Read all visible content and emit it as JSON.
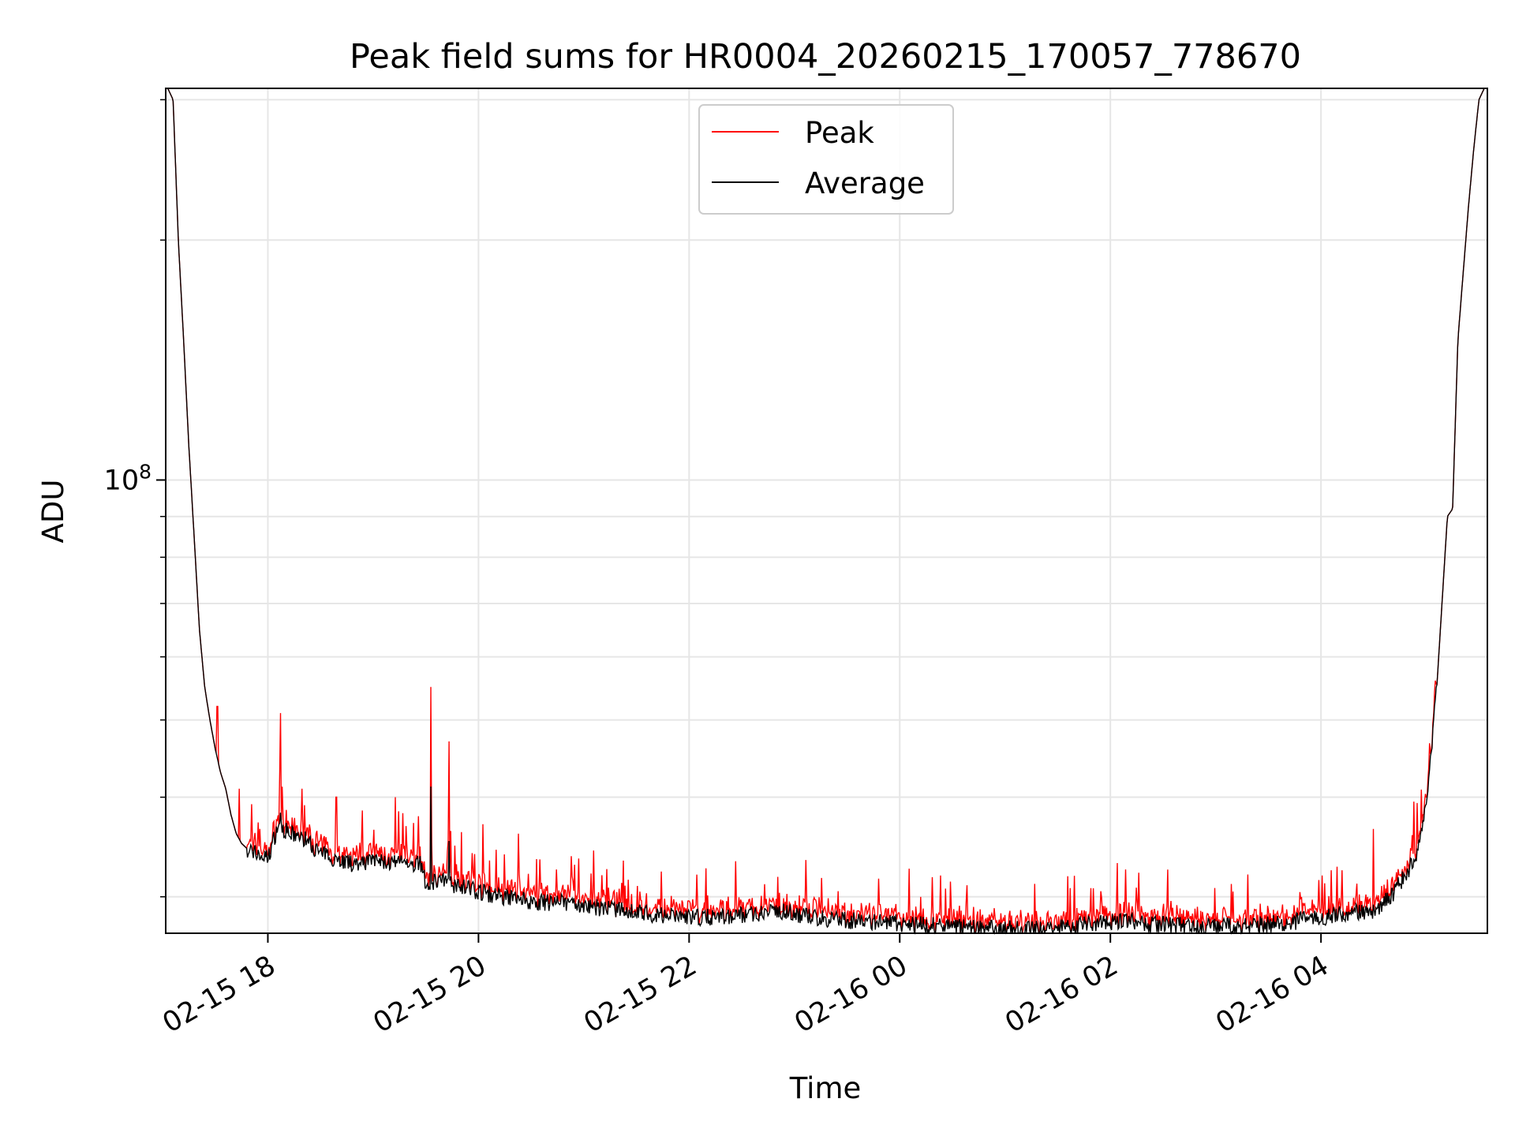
{
  "chart_data": {
    "type": "line",
    "title": "Peak field sums for HR0004_20260215_170057_778670",
    "xlabel": "Time",
    "ylabel": "ADU",
    "yscale": "log",
    "ylim": [
      27000000,
      310000000
    ],
    "xlim_hours": [
      17.03,
      5.58
    ],
    "x_ticks": [
      "02-15 18",
      "02-15 20",
      "02-15 22",
      "02-16 00",
      "02-16 02",
      "02-16 04"
    ],
    "y_ticks": [
      {
        "label_base": "10",
        "label_exp": "8",
        "value": 100000000
      }
    ],
    "grid": true,
    "legend": {
      "location": "upper center",
      "entries": [
        {
          "name": "Peak",
          "color": "#ff0000"
        },
        {
          "name": "Average",
          "color": "#000000"
        }
      ]
    },
    "series": [
      {
        "name": "Average",
        "color": "#000000",
        "hours": [
          17.05,
          17.1,
          17.15,
          17.2,
          17.25,
          17.3,
          17.35,
          17.4,
          17.45,
          17.5,
          17.55,
          17.6,
          17.65,
          17.7,
          17.75,
          17.8,
          17.9,
          18.0,
          18.1,
          18.2,
          18.35,
          18.5,
          18.65,
          18.8,
          19.0,
          19.2,
          19.4,
          19.45,
          19.5,
          19.6,
          19.8,
          20.0,
          20.2,
          20.4,
          20.6,
          20.8,
          21.0,
          21.2,
          21.5,
          21.8,
          22.0,
          22.3,
          22.6,
          22.9,
          23.2,
          23.5,
          23.8,
          24.0,
          24.3,
          24.6,
          24.9,
          25.2,
          25.5,
          25.8,
          26.1,
          26.4,
          26.7,
          27.0,
          27.3,
          27.6,
          27.9,
          28.2,
          28.5,
          28.6,
          28.7,
          28.8,
          28.9,
          29.0,
          29.1,
          29.2,
          29.25,
          29.3,
          29.4,
          29.45,
          29.5,
          29.55
        ],
        "values": [
          310000000,
          300000000,
          200000000,
          150000000,
          110000000,
          85000000,
          65000000,
          55000000,
          50000000,
          46000000,
          43000000,
          41000000,
          38000000,
          36000000,
          35000000,
          34500000,
          34000000,
          33500000,
          37000000,
          36000000,
          35500000,
          34000000,
          33500000,
          33000000,
          33300000,
          33000000,
          33000000,
          33200000,
          31000000,
          31500000,
          31000000,
          30500000,
          30000000,
          29800000,
          29500000,
          29500000,
          29200000,
          29000000,
          28700000,
          28400000,
          28300000,
          28300000,
          28600000,
          28800000,
          28200000,
          28000000,
          27900000,
          27800000,
          27600000,
          27500000,
          27400000,
          27300000,
          27400000,
          27800000,
          28000000,
          27700000,
          27600000,
          27500000,
          27600000,
          27800000,
          28100000,
          28600000,
          28800000,
          29500000,
          30500000,
          32000000,
          33500000,
          39000000,
          55000000,
          90000000,
          92000000,
          150000000,
          220000000,
          260000000,
          300000000,
          310000000
        ]
      },
      {
        "name": "Peak",
        "color": "#ff0000",
        "spikes": [
          {
            "hour": 17.52,
            "value": 52000000
          },
          {
            "hour": 17.73,
            "value": 41000000
          },
          {
            "hour": 18.12,
            "value": 51000000
          },
          {
            "hour": 18.65,
            "value": 40000000
          },
          {
            "hour": 19.21,
            "value": 40000000
          },
          {
            "hour": 19.55,
            "value": 55000000
          },
          {
            "hour": 19.72,
            "value": 47000000
          },
          {
            "hour": 20.04,
            "value": 37000000
          },
          {
            "hour": 20.38,
            "value": 36000000
          },
          {
            "hour": 20.95,
            "value": 33500000
          },
          {
            "hour": 21.22,
            "value": 32500000
          },
          {
            "hour": 23.1,
            "value": 29500000
          },
          {
            "hour": 24.22,
            "value": 29000000
          },
          {
            "hour": 26.35,
            "value": 28500000
          },
          {
            "hour": 28.5,
            "value": 36500000
          },
          {
            "hour": 28.88,
            "value": 39500000
          }
        ]
      }
    ]
  }
}
